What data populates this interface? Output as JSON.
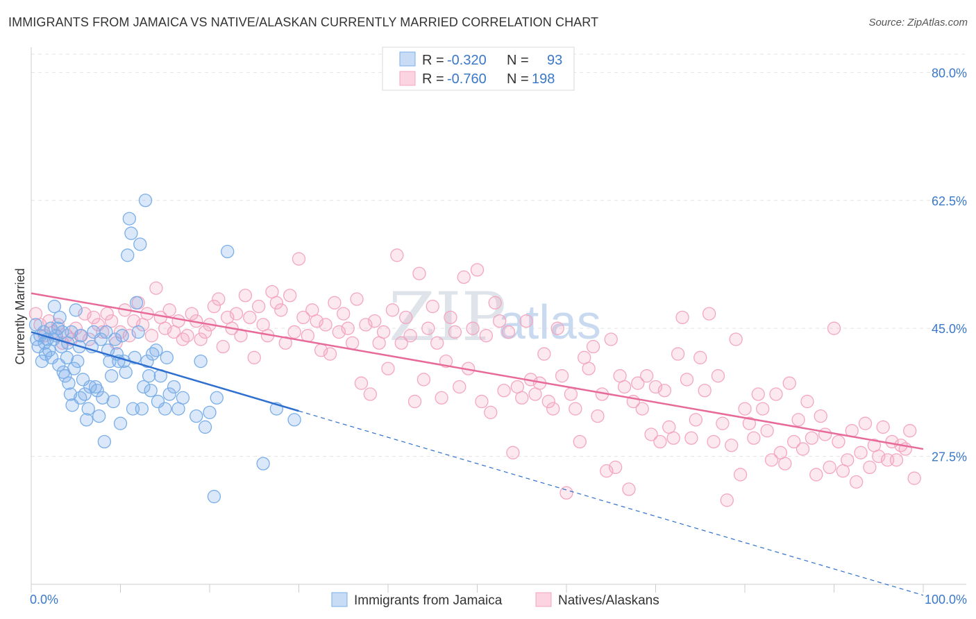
{
  "title": "IMMIGRANTS FROM JAMAICA VS NATIVE/ALASKAN CURRENTLY MARRIED CORRELATION CHART",
  "source": "Source: ZipAtlas.com",
  "watermark": {
    "zip": "ZIP",
    "atlas": "atlas"
  },
  "legend_top": [
    {
      "r_label": "R = ",
      "r_value": "-0.320",
      "n_label": "N = ",
      "n_value": "93",
      "color": "#7aaee8"
    },
    {
      "r_label": "R = ",
      "r_value": "-0.760",
      "n_label": "N = ",
      "n_value": "198",
      "color": "#f4a6c0"
    }
  ],
  "chart_data": {
    "type": "scatter",
    "title": "IMMIGRANTS FROM JAMAICA VS NATIVE/ALASKAN CURRENTLY MARRIED CORRELATION CHART",
    "xlabel": "",
    "ylabel": "Currently Married",
    "xlim": [
      0,
      100
    ],
    "ylim": [
      10,
      82.5
    ],
    "x_tick_labels": [
      "0.0%",
      "100.0%"
    ],
    "y_ticks": [
      27.5,
      45.0,
      62.5,
      80.0
    ],
    "y_tick_labels": [
      "27.5%",
      "45.0%",
      "62.5%",
      "80.0%"
    ],
    "grid": true,
    "legend_placement": "top-center",
    "series": [
      {
        "name": "Immigrants from Jamaica",
        "color": "#7aaee8",
        "line_color": "#2f6fd0",
        "trend": {
          "x0": 0,
          "y0": 44.5,
          "x1": 30,
          "y1": 33.7,
          "dash_x1": 100,
          "dash_y1": 8.5
        },
        "points": [
          [
            0.5,
            45.5
          ],
          [
            0.6,
            43.5
          ],
          [
            0.8,
            42.5
          ],
          [
            1.0,
            44.0
          ],
          [
            1.2,
            40.5
          ],
          [
            1.4,
            44.5
          ],
          [
            1.5,
            43.0
          ],
          [
            1.6,
            41.5
          ],
          [
            1.8,
            43.5
          ],
          [
            2.0,
            42.0
          ],
          [
            2.2,
            45.0
          ],
          [
            2.3,
            41.0
          ],
          [
            2.5,
            43.5
          ],
          [
            2.6,
            48.0
          ],
          [
            2.8,
            44.0
          ],
          [
            3.0,
            45.0
          ],
          [
            3.1,
            40.0
          ],
          [
            3.2,
            46.5
          ],
          [
            3.4,
            42.5
          ],
          [
            3.5,
            44.5
          ],
          [
            3.6,
            39.0
          ],
          [
            3.8,
            38.5
          ],
          [
            4.0,
            41.0
          ],
          [
            4.1,
            43.0
          ],
          [
            4.2,
            37.5
          ],
          [
            4.4,
            36.0
          ],
          [
            4.5,
            44.5
          ],
          [
            4.6,
            34.5
          ],
          [
            4.8,
            39.5
          ],
          [
            5.0,
            47.5
          ],
          [
            5.2,
            40.5
          ],
          [
            5.4,
            42.5
          ],
          [
            5.5,
            35.5
          ],
          [
            5.6,
            44.0
          ],
          [
            5.8,
            38.0
          ],
          [
            6.0,
            36.0
          ],
          [
            6.2,
            32.5
          ],
          [
            6.4,
            34.0
          ],
          [
            6.6,
            37.0
          ],
          [
            6.8,
            42.5
          ],
          [
            7.0,
            44.5
          ],
          [
            7.2,
            37.0
          ],
          [
            7.4,
            36.5
          ],
          [
            7.6,
            33.0
          ],
          [
            7.8,
            43.5
          ],
          [
            8.0,
            35.5
          ],
          [
            8.2,
            29.5
          ],
          [
            8.4,
            44.5
          ],
          [
            8.6,
            42.0
          ],
          [
            8.8,
            40.5
          ],
          [
            9.0,
            38.5
          ],
          [
            9.2,
            35.0
          ],
          [
            9.4,
            43.5
          ],
          [
            9.6,
            41.5
          ],
          [
            9.8,
            40.5
          ],
          [
            10.0,
            32.0
          ],
          [
            10.2,
            44.0
          ],
          [
            10.4,
            40.5
          ],
          [
            10.6,
            39.0
          ],
          [
            10.8,
            55.0
          ],
          [
            11.0,
            60.0
          ],
          [
            11.2,
            58.0
          ],
          [
            11.4,
            34.0
          ],
          [
            11.6,
            41.0
          ],
          [
            11.8,
            48.5
          ],
          [
            12.0,
            44.5
          ],
          [
            12.2,
            56.5
          ],
          [
            12.4,
            34.0
          ],
          [
            12.6,
            37.0
          ],
          [
            12.8,
            62.5
          ],
          [
            13.0,
            40.5
          ],
          [
            13.2,
            38.5
          ],
          [
            13.4,
            36.5
          ],
          [
            13.6,
            41.5
          ],
          [
            14.0,
            42.0
          ],
          [
            14.2,
            35.0
          ],
          [
            14.5,
            38.5
          ],
          [
            15.0,
            34.0
          ],
          [
            15.2,
            41.0
          ],
          [
            15.5,
            36.0
          ],
          [
            16.0,
            37.0
          ],
          [
            16.5,
            34.0
          ],
          [
            17.0,
            35.5
          ],
          [
            18.5,
            33.0
          ],
          [
            19.0,
            40.5
          ],
          [
            19.5,
            31.5
          ],
          [
            20.0,
            33.5
          ],
          [
            20.5,
            22.0
          ],
          [
            20.8,
            35.5
          ],
          [
            22.0,
            55.5
          ],
          [
            26.0,
            26.5
          ],
          [
            27.5,
            34.0
          ],
          [
            29.5,
            32.5
          ]
        ]
      },
      {
        "name": "Natives/Alaskans",
        "color": "#f4a6c0",
        "line_color": "#e76a98",
        "trend": {
          "x0": 0,
          "y0": 49.8,
          "x1": 100,
          "y1": 28.5
        },
        "points": [
          [
            0.5,
            47.0
          ],
          [
            1.0,
            45.5
          ],
          [
            1.5,
            44.0
          ],
          [
            2.0,
            46.0
          ],
          [
            2.5,
            44.5
          ],
          [
            3.0,
            45.5
          ],
          [
            3.5,
            43.0
          ],
          [
            4.0,
            44.0
          ],
          [
            4.5,
            43.5
          ],
          [
            5.0,
            45.0
          ],
          [
            5.5,
            44.0
          ],
          [
            6.0,
            47.0
          ],
          [
            6.5,
            43.5
          ],
          [
            7.0,
            46.5
          ],
          [
            7.5,
            45.5
          ],
          [
            8.0,
            44.5
          ],
          [
            8.5,
            47.0
          ],
          [
            9.0,
            46.0
          ],
          [
            9.5,
            43.0
          ],
          [
            10.0,
            44.5
          ],
          [
            10.5,
            47.5
          ],
          [
            11.0,
            44.0
          ],
          [
            11.5,
            46.0
          ],
          [
            12.0,
            48.5
          ],
          [
            12.5,
            45.5
          ],
          [
            13.0,
            47.0
          ],
          [
            13.5,
            44.0
          ],
          [
            14.0,
            50.5
          ],
          [
            14.5,
            46.5
          ],
          [
            15.0,
            45.0
          ],
          [
            15.5,
            47.5
          ],
          [
            16.0,
            44.5
          ],
          [
            16.5,
            46.0
          ],
          [
            17.0,
            43.5
          ],
          [
            17.5,
            44.0
          ],
          [
            18.0,
            47.0
          ],
          [
            18.5,
            46.0
          ],
          [
            19.0,
            43.5
          ],
          [
            19.5,
            44.5
          ],
          [
            20.0,
            45.5
          ],
          [
            20.5,
            48.0
          ],
          [
            21.0,
            49.0
          ],
          [
            21.5,
            42.5
          ],
          [
            22.0,
            46.5
          ],
          [
            22.5,
            45.0
          ],
          [
            23.0,
            47.0
          ],
          [
            23.5,
            44.0
          ],
          [
            24.0,
            49.5
          ],
          [
            24.5,
            46.5
          ],
          [
            25.0,
            41.0
          ],
          [
            25.5,
            48.0
          ],
          [
            26.0,
            45.5
          ],
          [
            26.5,
            44.0
          ],
          [
            27.0,
            50.0
          ],
          [
            27.5,
            48.5
          ],
          [
            28.0,
            47.5
          ],
          [
            28.5,
            43.0
          ],
          [
            29.0,
            49.5
          ],
          [
            29.5,
            44.5
          ],
          [
            30.0,
            54.5
          ],
          [
            30.5,
            46.5
          ],
          [
            31.0,
            44.0
          ],
          [
            31.5,
            47.5
          ],
          [
            32.0,
            46.0
          ],
          [
            32.5,
            42.0
          ],
          [
            33.0,
            45.5
          ],
          [
            33.5,
            41.5
          ],
          [
            34.0,
            48.5
          ],
          [
            34.5,
            44.5
          ],
          [
            35.0,
            47.0
          ],
          [
            35.5,
            45.0
          ],
          [
            36.0,
            43.0
          ],
          [
            36.5,
            49.0
          ],
          [
            37.0,
            37.5
          ],
          [
            37.5,
            45.5
          ],
          [
            38.0,
            36.0
          ],
          [
            38.5,
            46.0
          ],
          [
            39.0,
            43.0
          ],
          [
            39.5,
            44.5
          ],
          [
            40.0,
            39.5
          ],
          [
            40.5,
            47.5
          ],
          [
            41.0,
            55.0
          ],
          [
            41.5,
            43.0
          ],
          [
            42.0,
            46.5
          ],
          [
            42.5,
            44.0
          ],
          [
            43.0,
            35.0
          ],
          [
            43.5,
            52.5
          ],
          [
            44.0,
            38.0
          ],
          [
            44.5,
            45.0
          ],
          [
            45.0,
            48.0
          ],
          [
            45.5,
            43.0
          ],
          [
            46.0,
            35.5
          ],
          [
            46.5,
            40.5
          ],
          [
            47.0,
            46.5
          ],
          [
            47.5,
            44.5
          ],
          [
            48.0,
            37.0
          ],
          [
            48.5,
            52.0
          ],
          [
            49.0,
            39.5
          ],
          [
            49.5,
            45.0
          ],
          [
            50.0,
            53.0
          ],
          [
            50.5,
            35.0
          ],
          [
            51.0,
            44.0
          ],
          [
            51.5,
            33.5
          ],
          [
            52.0,
            48.5
          ],
          [
            52.5,
            46.0
          ],
          [
            53.0,
            36.5
          ],
          [
            53.5,
            44.5
          ],
          [
            54.0,
            28.0
          ],
          [
            54.5,
            37.0
          ],
          [
            55.0,
            35.5
          ],
          [
            55.5,
            46.0
          ],
          [
            56.0,
            38.0
          ],
          [
            56.5,
            36.0
          ],
          [
            57.0,
            37.5
          ],
          [
            57.5,
            41.5
          ],
          [
            58.0,
            35.0
          ],
          [
            58.5,
            34.0
          ],
          [
            59.0,
            45.0
          ],
          [
            59.5,
            38.5
          ],
          [
            60.0,
            22.5
          ],
          [
            60.5,
            36.0
          ],
          [
            61.0,
            34.0
          ],
          [
            61.5,
            29.5
          ],
          [
            62.0,
            41.0
          ],
          [
            62.5,
            39.5
          ],
          [
            63.0,
            42.5
          ],
          [
            63.5,
            33.0
          ],
          [
            64.0,
            36.0
          ],
          [
            64.5,
            25.5
          ],
          [
            65.0,
            43.5
          ],
          [
            65.5,
            26.0
          ],
          [
            66.0,
            38.5
          ],
          [
            66.5,
            37.0
          ],
          [
            67.0,
            23.0
          ],
          [
            67.5,
            35.0
          ],
          [
            68.0,
            37.5
          ],
          [
            68.5,
            34.0
          ],
          [
            69.0,
            38.5
          ],
          [
            69.5,
            30.5
          ],
          [
            70.0,
            37.0
          ],
          [
            70.5,
            29.5
          ],
          [
            71.0,
            36.5
          ],
          [
            71.5,
            31.5
          ],
          [
            72.0,
            30.0
          ],
          [
            72.5,
            41.5
          ],
          [
            73.0,
            46.5
          ],
          [
            73.5,
            38.0
          ],
          [
            74.0,
            30.0
          ],
          [
            74.5,
            32.5
          ],
          [
            75.0,
            41.0
          ],
          [
            75.5,
            36.5
          ],
          [
            76.0,
            47.0
          ],
          [
            76.5,
            29.5
          ],
          [
            77.0,
            38.5
          ],
          [
            77.5,
            32.0
          ],
          [
            78.0,
            21.5
          ],
          [
            78.5,
            29.0
          ],
          [
            79.0,
            43.5
          ],
          [
            79.5,
            25.0
          ],
          [
            80.0,
            34.0
          ],
          [
            80.5,
            32.0
          ],
          [
            81.0,
            30.0
          ],
          [
            81.5,
            36.0
          ],
          [
            82.0,
            34.0
          ],
          [
            82.5,
            31.0
          ],
          [
            83.0,
            27.0
          ],
          [
            83.5,
            36.0
          ],
          [
            84.0,
            28.0
          ],
          [
            84.5,
            26.5
          ],
          [
            85.0,
            37.5
          ],
          [
            85.5,
            29.5
          ],
          [
            86.0,
            32.5
          ],
          [
            86.5,
            28.5
          ],
          [
            87.0,
            35.0
          ],
          [
            87.5,
            30.0
          ],
          [
            88.0,
            25.0
          ],
          [
            88.5,
            33.0
          ],
          [
            89.0,
            30.5
          ],
          [
            89.5,
            26.0
          ],
          [
            90.0,
            45.0
          ],
          [
            90.5,
            29.5
          ],
          [
            91.0,
            25.5
          ],
          [
            91.5,
            27.0
          ],
          [
            92.0,
            31.0
          ],
          [
            92.5,
            24.0
          ],
          [
            93.0,
            28.0
          ],
          [
            93.5,
            32.0
          ],
          [
            94.0,
            26.0
          ],
          [
            94.5,
            29.0
          ],
          [
            95.0,
            27.5
          ],
          [
            95.5,
            31.5
          ],
          [
            96.0,
            27.0
          ],
          [
            96.5,
            29.5
          ],
          [
            97.0,
            27.0
          ],
          [
            97.5,
            29.0
          ],
          [
            98.0,
            28.5
          ],
          [
            98.5,
            31.0
          ],
          [
            99.0,
            24.5
          ]
        ]
      }
    ]
  },
  "bottom_legend": [
    {
      "label": "Immigrants from Jamaica",
      "color": "#7aaee8"
    },
    {
      "label": "Natives/Alaskans",
      "color": "#f4a6c0"
    }
  ]
}
